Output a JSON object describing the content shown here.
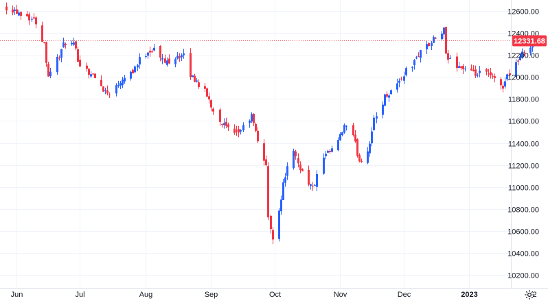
{
  "chart_data": {
    "type": "candlestick",
    "title": "",
    "xlabel": "",
    "ylabel": "",
    "ylim": [
      10100,
      12730
    ],
    "y_ticks": [
      12600,
      12400,
      12200,
      12000,
      11800,
      11600,
      11400,
      11200,
      11000,
      10800,
      10600,
      10400,
      10200
    ],
    "y_tick_labels": [
      "12600.00",
      "12400.00",
      "12200.00",
      "12000.00",
      "11800.00",
      "11600.00",
      "11400.00",
      "11200.00",
      "11000.00",
      "10800.00",
      "10600.00",
      "10400.00",
      "10200.00"
    ],
    "x_tick_labels": [
      "Jun",
      "Jul",
      "Aug",
      "Sep",
      "Oct",
      "Nov",
      "Dec",
      "2023",
      "2"
    ],
    "x_tick_dates": [
      "2022-06-01",
      "2022-07-01",
      "2022-08-01",
      "2022-09-01",
      "2022-10-01",
      "2022-11-01",
      "2022-12-01",
      "2023-01-01",
      "2023-02-01"
    ],
    "x_range": [
      "2022-05-26",
      "2023-02-02"
    ],
    "grid": true,
    "last_price": 12331.68,
    "last_price_label": "12331.68",
    "colors": {
      "up": "#2962ff",
      "down": "#f23645",
      "price_tag": "#f23645",
      "price_line": "#f23645",
      "grid": "#f0f3fa",
      "axis_text": "#131722"
    },
    "anchors": [
      [
        "2022-05-27",
        12640
      ],
      [
        "2022-06-01",
        12600
      ],
      [
        "2022-06-06",
        12560
      ],
      [
        "2022-06-10",
        12500
      ],
      [
        "2022-06-14",
        12300
      ],
      [
        "2022-06-16",
        12020
      ],
      [
        "2022-06-21",
        12200
      ],
      [
        "2022-06-24",
        12320
      ],
      [
        "2022-06-28",
        12280
      ],
      [
        "2022-07-01",
        12120
      ],
      [
        "2022-07-06",
        12030
      ],
      [
        "2022-07-11",
        11920
      ],
      [
        "2022-07-14",
        11850
      ],
      [
        "2022-07-18",
        11910
      ],
      [
        "2022-07-21",
        12000
      ],
      [
        "2022-07-26",
        12060
      ],
      [
        "2022-07-29",
        12150
      ],
      [
        "2022-08-02",
        12240
      ],
      [
        "2022-08-05",
        12250
      ],
      [
        "2022-08-10",
        12130
      ],
      [
        "2022-08-16",
        12200
      ],
      [
        "2022-08-19",
        12180
      ],
      [
        "2022-08-22",
        12020
      ],
      [
        "2022-08-26",
        11940
      ],
      [
        "2022-08-30",
        11830
      ],
      [
        "2022-09-02",
        11700
      ],
      [
        "2022-09-07",
        11560
      ],
      [
        "2022-09-12",
        11460
      ],
      [
        "2022-09-16",
        11540
      ],
      [
        "2022-09-20",
        11640
      ],
      [
        "2022-09-23",
        11420
      ],
      [
        "2022-09-27",
        11200
      ],
      [
        "2022-09-28",
        10700
      ],
      [
        "2022-09-30",
        10550
      ],
      [
        "2022-10-03",
        10800
      ],
      [
        "2022-10-06",
        11120
      ],
      [
        "2022-10-10",
        11300
      ],
      [
        "2022-10-14",
        11140
      ],
      [
        "2022-10-19",
        10980
      ],
      [
        "2022-10-24",
        11260
      ],
      [
        "2022-10-28",
        11330
      ],
      [
        "2022-11-01",
        11450
      ],
      [
        "2022-11-03",
        11560
      ],
      [
        "2022-11-07",
        11450
      ],
      [
        "2022-11-10",
        11240
      ],
      [
        "2022-11-14",
        11330
      ],
      [
        "2022-11-17",
        11600
      ],
      [
        "2022-11-22",
        11820
      ],
      [
        "2022-11-25",
        11880
      ],
      [
        "2022-11-29",
        11960
      ],
      [
        "2022-12-02",
        12060
      ],
      [
        "2022-12-06",
        12130
      ],
      [
        "2022-12-09",
        12250
      ],
      [
        "2022-12-13",
        12290
      ],
      [
        "2022-12-16",
        12350
      ],
      [
        "2022-12-20",
        12420
      ],
      [
        "2022-12-21",
        12180
      ],
      [
        "2022-12-27",
        12100
      ],
      [
        "2023-01-03",
        12020
      ],
      [
        "2023-01-09",
        12030
      ],
      [
        "2023-01-13",
        11970
      ],
      [
        "2023-01-17",
        11920
      ],
      [
        "2023-01-20",
        12050
      ],
      [
        "2023-01-25",
        12180
      ],
      [
        "2023-01-30",
        12300
      ],
      [
        "2023-02-01",
        12331.68
      ]
    ]
  }
}
